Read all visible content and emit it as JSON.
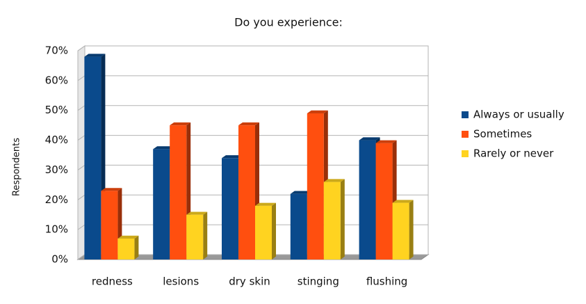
{
  "chart_data": {
    "type": "bar3d",
    "title": "Do you experience:",
    "y_label": "Respondents",
    "categories": [
      "redness",
      "lesions",
      "dry skin",
      "stinging",
      "flushing"
    ],
    "series": [
      {
        "name": "Always or usually",
        "color": "#0a4a8c",
        "values": [
          68,
          37,
          34,
          22,
          40
        ]
      },
      {
        "name": "Sometimes",
        "color": "#ff4f0f",
        "values": [
          23,
          45,
          45,
          49,
          39
        ]
      },
      {
        "name": "Rarely or never",
        "color": "#ffd320",
        "values": [
          7,
          15,
          18,
          26,
          19
        ]
      }
    ],
    "ylim": [
      0,
      70
    ],
    "yticks": [
      {
        "value": 0,
        "label": "0%"
      },
      {
        "value": 10,
        "label": "10%"
      },
      {
        "value": 20,
        "label": "20%"
      },
      {
        "value": 30,
        "label": "30%"
      },
      {
        "value": 40,
        "label": "40%"
      },
      {
        "value": 50,
        "label": "50%"
      },
      {
        "value": 60,
        "label": "60%"
      },
      {
        "value": 70,
        "label": "70%"
      }
    ],
    "grid": true
  }
}
